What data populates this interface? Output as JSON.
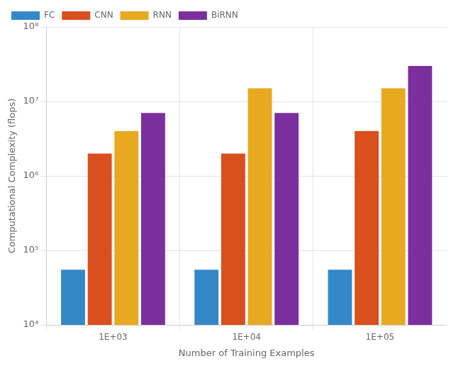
{
  "chart_data": {
    "type": "bar",
    "xlabel": "Number of Training Examples",
    "ylabel": "Computational Complexity (flops)",
    "categories": [
      "1E+03",
      "1E+04",
      "1E+05"
    ],
    "series": [
      {
        "name": "FC",
        "color": "#3488c8",
        "values": [
          55000,
          55000,
          55000
        ]
      },
      {
        "name": "CNN",
        "color": "#d94f1e",
        "values": [
          2000000,
          2000000,
          4000000
        ]
      },
      {
        "name": "RNN",
        "color": "#e8a820",
        "values": [
          4000000,
          15000000,
          15000000
        ]
      },
      {
        "name": "BiRNN",
        "color": "#7b2f9e",
        "values": [
          7000000,
          7000000,
          30000000
        ]
      }
    ],
    "log": "y",
    "ylim": [
      10000,
      100000000
    ],
    "yticks": [
      {
        "value": 10000,
        "label": "10⁴"
      },
      {
        "value": 100000,
        "label": "10⁵"
      },
      {
        "value": 1000000,
        "label": "10⁶"
      },
      {
        "value": 10000000,
        "label": "10⁷"
      },
      {
        "value": 100000000,
        "label": "10⁸"
      }
    ],
    "grid": true,
    "legend": "upper left"
  }
}
